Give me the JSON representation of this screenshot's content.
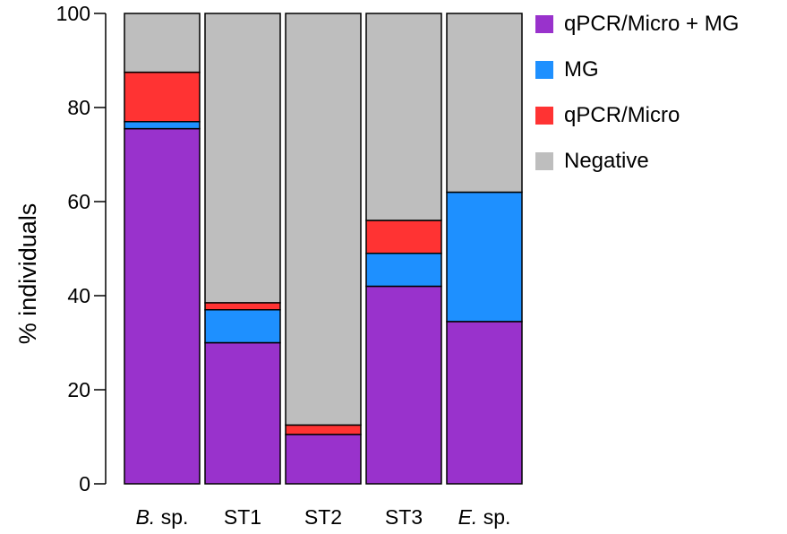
{
  "chart_data": {
    "type": "bar",
    "stacked": true,
    "ylabel": "% individuals",
    "ylim": [
      0,
      100
    ],
    "yticks": [
      0,
      20,
      40,
      60,
      80,
      100
    ],
    "grid": false,
    "legend_position": "top-right",
    "categories": [
      {
        "prefix": "B.",
        "suffix": " sp."
      },
      {
        "prefix": "",
        "suffix": "ST1"
      },
      {
        "prefix": "",
        "suffix": "ST2"
      },
      {
        "prefix": "",
        "suffix": "ST3"
      },
      {
        "prefix": "E.",
        "suffix": " sp."
      }
    ],
    "series": [
      {
        "name": "qPCR/Micro + MG",
        "color": "#9932CC",
        "values": [
          75.5,
          30.0,
          10.5,
          42.0,
          34.5
        ]
      },
      {
        "name": "MG",
        "color": "#1E90FF",
        "values": [
          1.5,
          7.0,
          0.0,
          7.0,
          27.5
        ]
      },
      {
        "name": "qPCR/Micro",
        "color": "#FF3333",
        "values": [
          10.5,
          1.5,
          2.0,
          7.0,
          0.0
        ]
      },
      {
        "name": "Negative",
        "color": "#BEBEBE",
        "values": [
          12.5,
          61.5,
          87.5,
          44.0,
          38.0
        ]
      }
    ]
  }
}
